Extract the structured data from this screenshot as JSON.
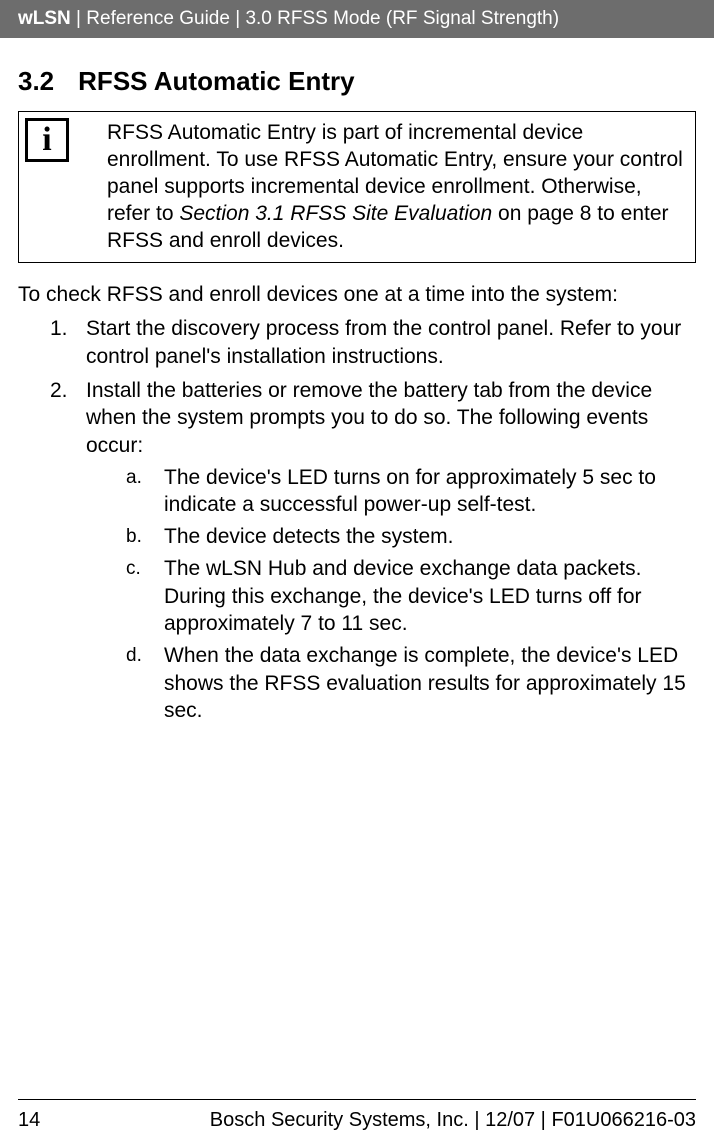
{
  "header": {
    "product": "wLSN",
    "separator": " | ",
    "doc": "Reference Guide",
    "section": "3.0 RFSS Mode (RF Signal Strength)"
  },
  "section": {
    "number": "3.2",
    "title": "RFSS Automatic Entry"
  },
  "infobox": {
    "icon": "i",
    "text_before_ref": "RFSS Automatic Entry is part of incremental device enrollment. To use RFSS Automatic Entry, ensure your control panel supports incremental device enrollment. Otherwise, refer to ",
    "ref": "Section 3.1 RFSS Site Evaluation",
    "text_after_ref": " on page 8 to enter RFSS and enroll devices."
  },
  "body": {
    "intro": "To check RFSS and enroll devices one at a time into the system:",
    "steps": [
      {
        "marker": "1.",
        "text": "Start the discovery process from the control panel. Refer to your control panel's installation instructions."
      },
      {
        "marker": "2.",
        "text": "Install the batteries or remove the battery tab from the device when the system prompts you to do so. The following events occur:",
        "sub": [
          {
            "marker": "a.",
            "text": "The device's LED turns on for approximately 5 sec to indicate a successful power-up self-test."
          },
          {
            "marker": "b.",
            "text": "The device detects the system."
          },
          {
            "marker": "c.",
            "text": "The wLSN Hub and device exchange data packets. During this exchange, the device's LED turns off for approximately 7 to 11 sec."
          },
          {
            "marker": "d.",
            "text": "When the data exchange is complete, the device's LED shows the RFSS evaluation results for approximately 15 sec."
          }
        ]
      }
    ]
  },
  "footer": {
    "page": "14",
    "text": "Bosch Security Systems, Inc. | 12/07 | F01U066216-03"
  }
}
